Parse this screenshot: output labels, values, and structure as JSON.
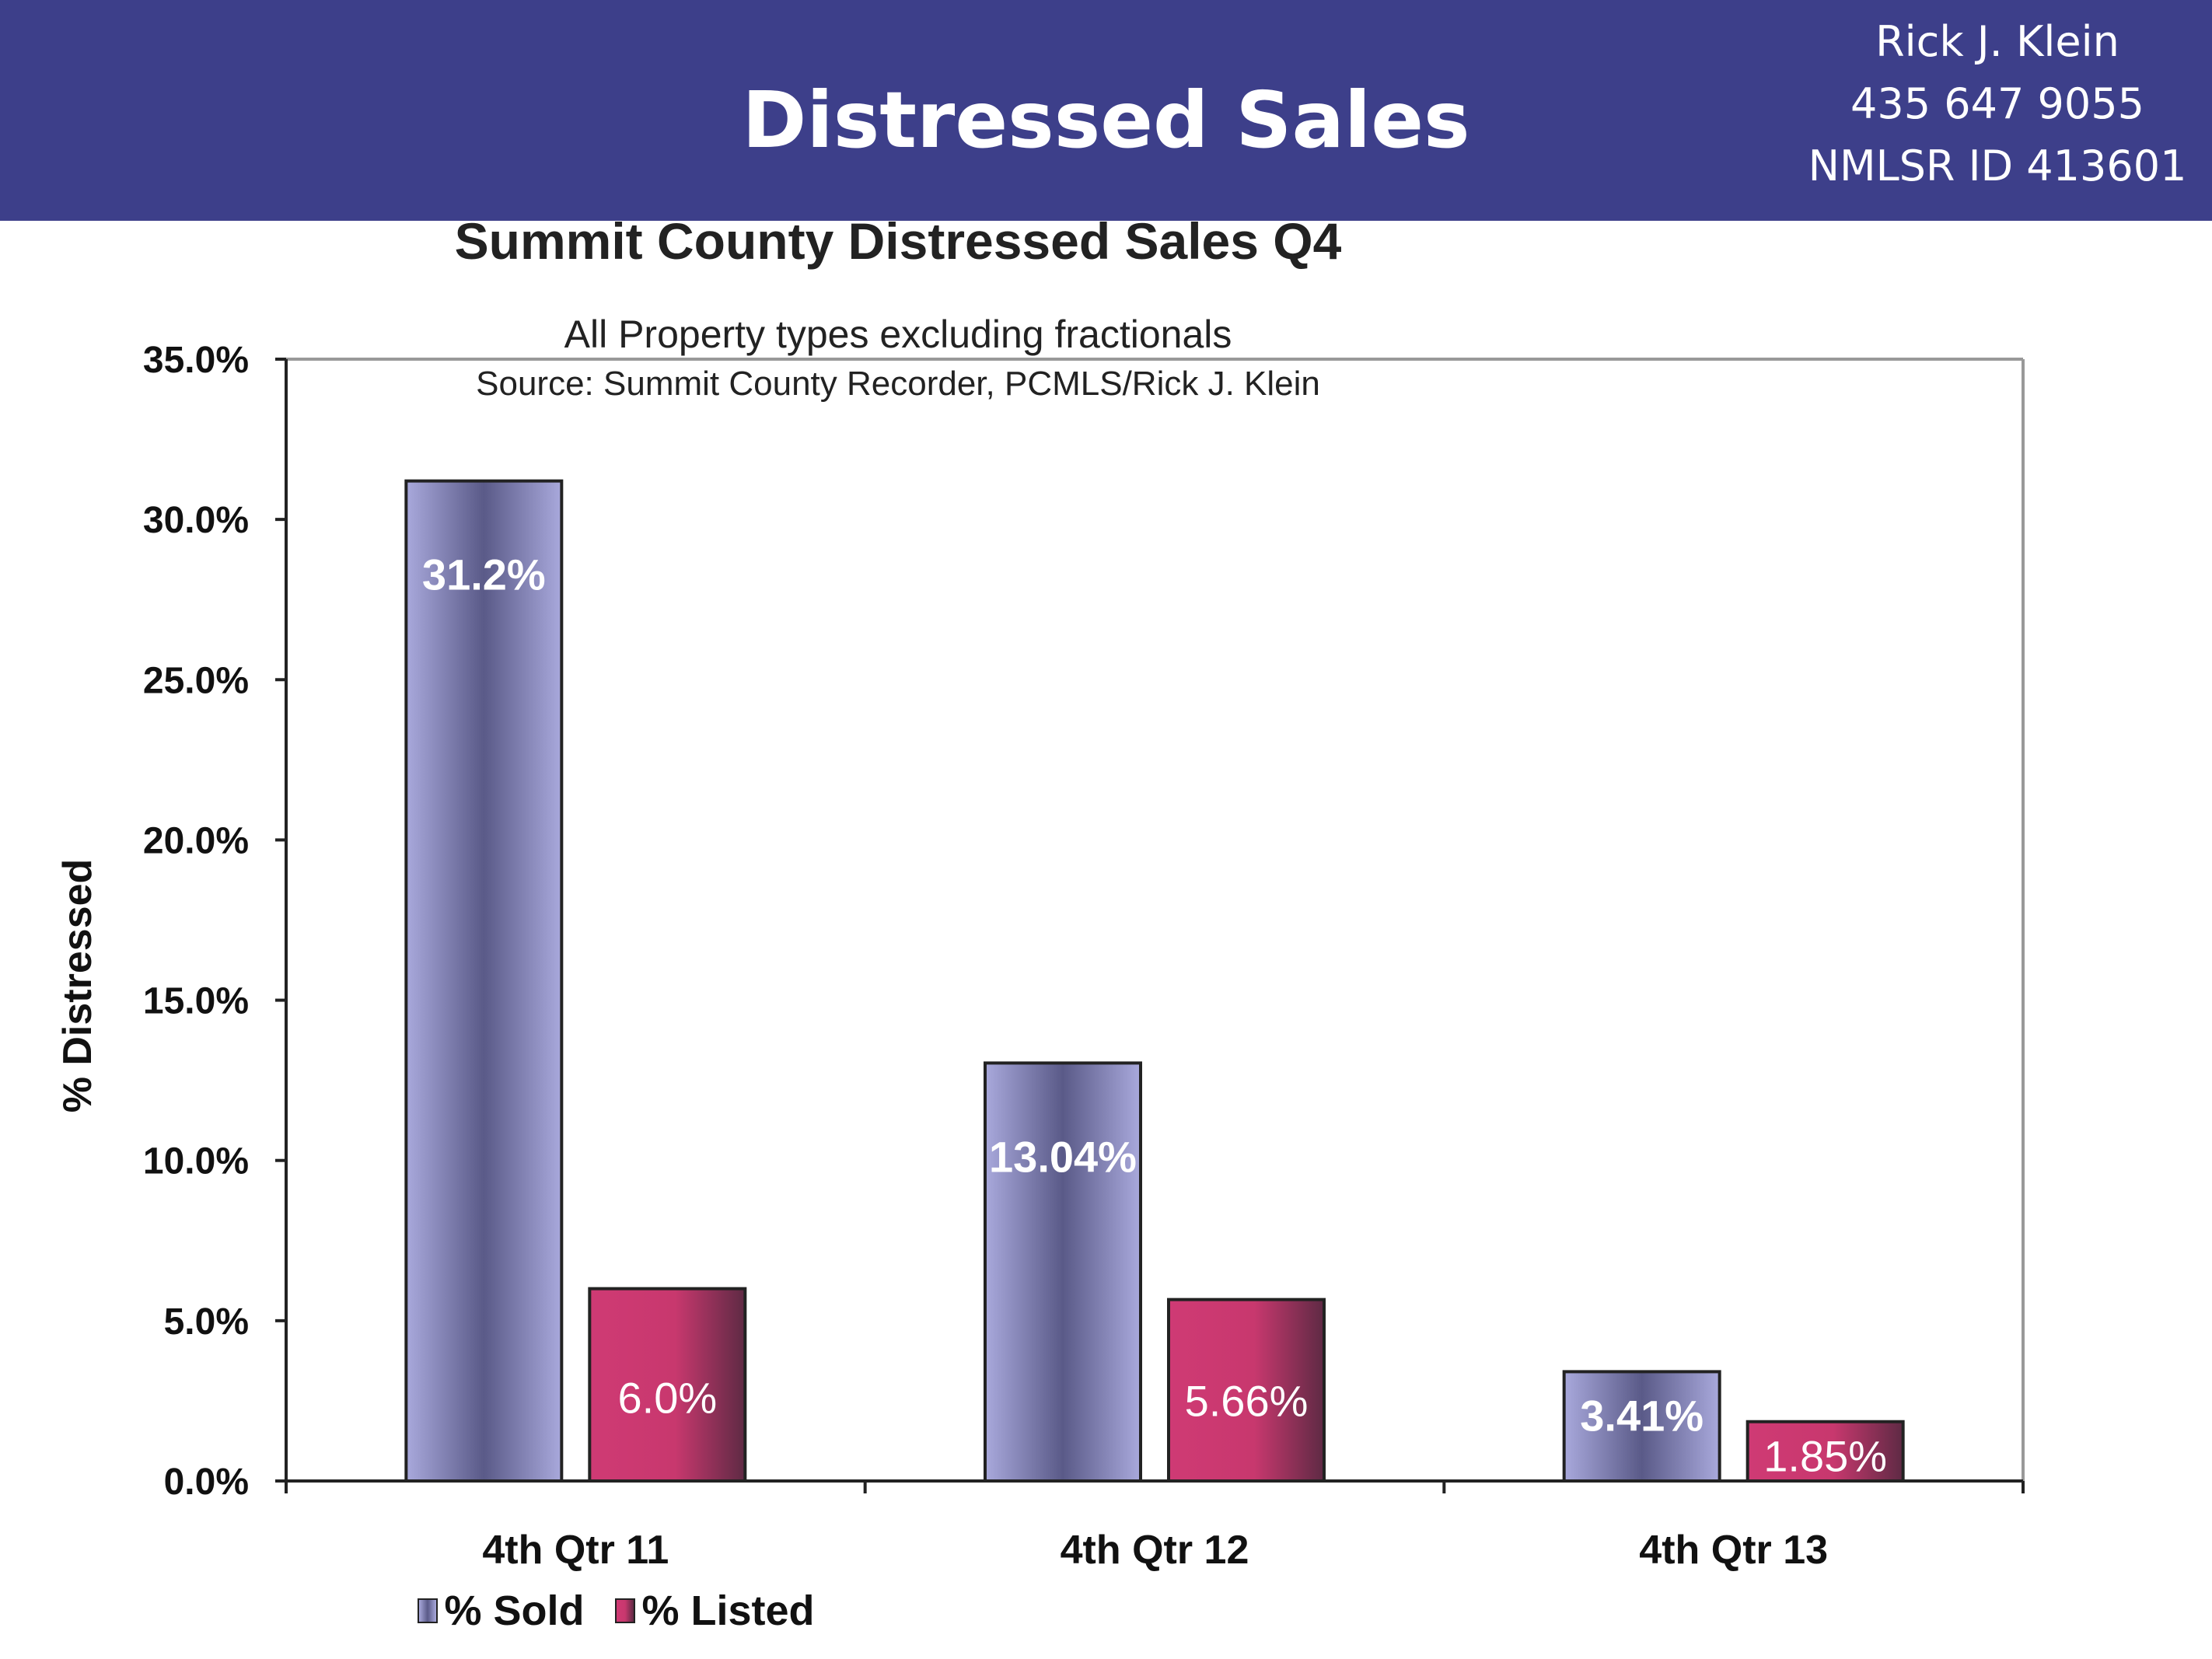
{
  "header": {
    "title": "Distressed Sales",
    "contact_name": "Rick J. Klein",
    "contact_phone": "435 647 9055",
    "contact_id": "NMLSR ID 413601",
    "background_color": "#3d3f8a"
  },
  "chart_data": {
    "type": "bar",
    "title": "Summit County Distressed Sales Q4",
    "subtitle": "All Property types excluding fractionals",
    "source": "Source: Summit County Recorder, PCMLS/Rick J. Klein",
    "xlabel": "",
    "ylabel": "% Distressed",
    "ylim": [
      0,
      35
    ],
    "yticks": [
      "0.0%",
      "5.0%",
      "10.0%",
      "15.0%",
      "20.0%",
      "25.0%",
      "30.0%",
      "35.0%"
    ],
    "categories": [
      "4th Qtr 11",
      "4th Qtr 12",
      "4th Qtr 13"
    ],
    "series": [
      {
        "name": "% Sold",
        "values": [
          31.2,
          13.04,
          3.41
        ],
        "labels": [
          "31.2%",
          "13.04%",
          "3.41%"
        ],
        "color": "#8e8ec8"
      },
      {
        "name": "% Listed",
        "values": [
          6.0,
          5.66,
          1.85
        ],
        "labels": [
          "6.0%",
          "5.66%",
          "1.85%"
        ],
        "color": "#c8386e"
      }
    ],
    "grid": false,
    "legend": "bottom-center"
  }
}
